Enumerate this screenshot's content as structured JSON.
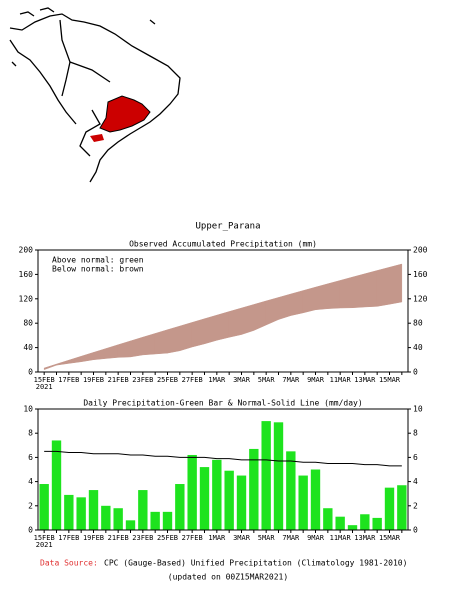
{
  "title": "Upper_Parana",
  "footer": {
    "source_label": "Data Source:",
    "source_text": "CPC (Gauge-Based) Unified Precipitation (Climatology 1981-2010)",
    "updated": "(updated on 00Z15MAR2021)"
  },
  "chart_data": [
    {
      "type": "area",
      "title": "Observed Accumulated Precipitation (mm)",
      "legend_text": [
        "Above normal: green",
        "Below normal: brown"
      ],
      "above_color": "#00ff00",
      "below_color": "#c4978b",
      "categories": [
        "15FEB",
        null,
        "17FEB",
        null,
        "19FEB",
        null,
        "21FEB",
        null,
        "23FEB",
        null,
        "25FEB",
        null,
        "27FEB",
        null,
        "1MAR",
        null,
        "3MAR",
        null,
        "5MAR",
        null,
        "7MAR",
        null,
        "9MAR",
        null,
        "11MAR",
        null,
        "13MAR",
        null,
        "15MAR",
        null
      ],
      "year": "2021",
      "observed": [
        3.8,
        11.2,
        14.1,
        16.8,
        20.1,
        22.1,
        23.9,
        24.7,
        28,
        29.5,
        31,
        34.8,
        41,
        46.2,
        52,
        56.9,
        61.4,
        68.1,
        77.1,
        86,
        92.5,
        97,
        102,
        103.8,
        104.9,
        105.3,
        106.6,
        107.6,
        111.1,
        114.8
      ],
      "normal": [
        6.5,
        13,
        19.4,
        25.8,
        32.1,
        38.4,
        44.7,
        50.9,
        57.1,
        63.2,
        69.3,
        75.3,
        81.3,
        87.3,
        93.2,
        99.1,
        104.9,
        110.7,
        116.5,
        122.2,
        127.9,
        133.5,
        139.1,
        144.6,
        150.1,
        155.6,
        161,
        166.4,
        171.7,
        177
      ],
      "ylim": [
        0,
        200
      ],
      "yticks": [
        0,
        40,
        80,
        120,
        160,
        200
      ]
    },
    {
      "type": "bar",
      "title": "Daily Precipitation-Green Bar & Normal-Solid Line (mm/day)",
      "categories": [
        "15FEB",
        null,
        "17FEB",
        null,
        "19FEB",
        null,
        "21FEB",
        null,
        "23FEB",
        null,
        "25FEB",
        null,
        "27FEB",
        null,
        "1MAR",
        null,
        "3MAR",
        null,
        "5MAR",
        null,
        "7MAR",
        null,
        "9MAR",
        null,
        "11MAR",
        null,
        "13MAR",
        null,
        "15MAR",
        null
      ],
      "year": "2021",
      "bar_color": "#1ee31e",
      "line_color": "#000000",
      "values": [
        3.8,
        7.4,
        2.9,
        2.7,
        3.3,
        2.0,
        1.8,
        0.8,
        3.3,
        1.5,
        1.5,
        3.8,
        6.2,
        5.2,
        5.8,
        4.9,
        4.5,
        6.7,
        9.0,
        8.9,
        6.5,
        4.5,
        5.0,
        1.8,
        1.1,
        0.4,
        1.3,
        1.0,
        3.5,
        3.7
      ],
      "normal": [
        6.5,
        6.5,
        6.4,
        6.4,
        6.3,
        6.3,
        6.3,
        6.2,
        6.2,
        6.1,
        6.1,
        6.0,
        6.0,
        6.0,
        5.9,
        5.9,
        5.8,
        5.8,
        5.8,
        5.7,
        5.7,
        5.6,
        5.6,
        5.5,
        5.5,
        5.5,
        5.4,
        5.4,
        5.3,
        5.3
      ],
      "ylim": [
        0,
        10
      ],
      "yticks": [
        0,
        2,
        4,
        6,
        8,
        10
      ]
    }
  ]
}
